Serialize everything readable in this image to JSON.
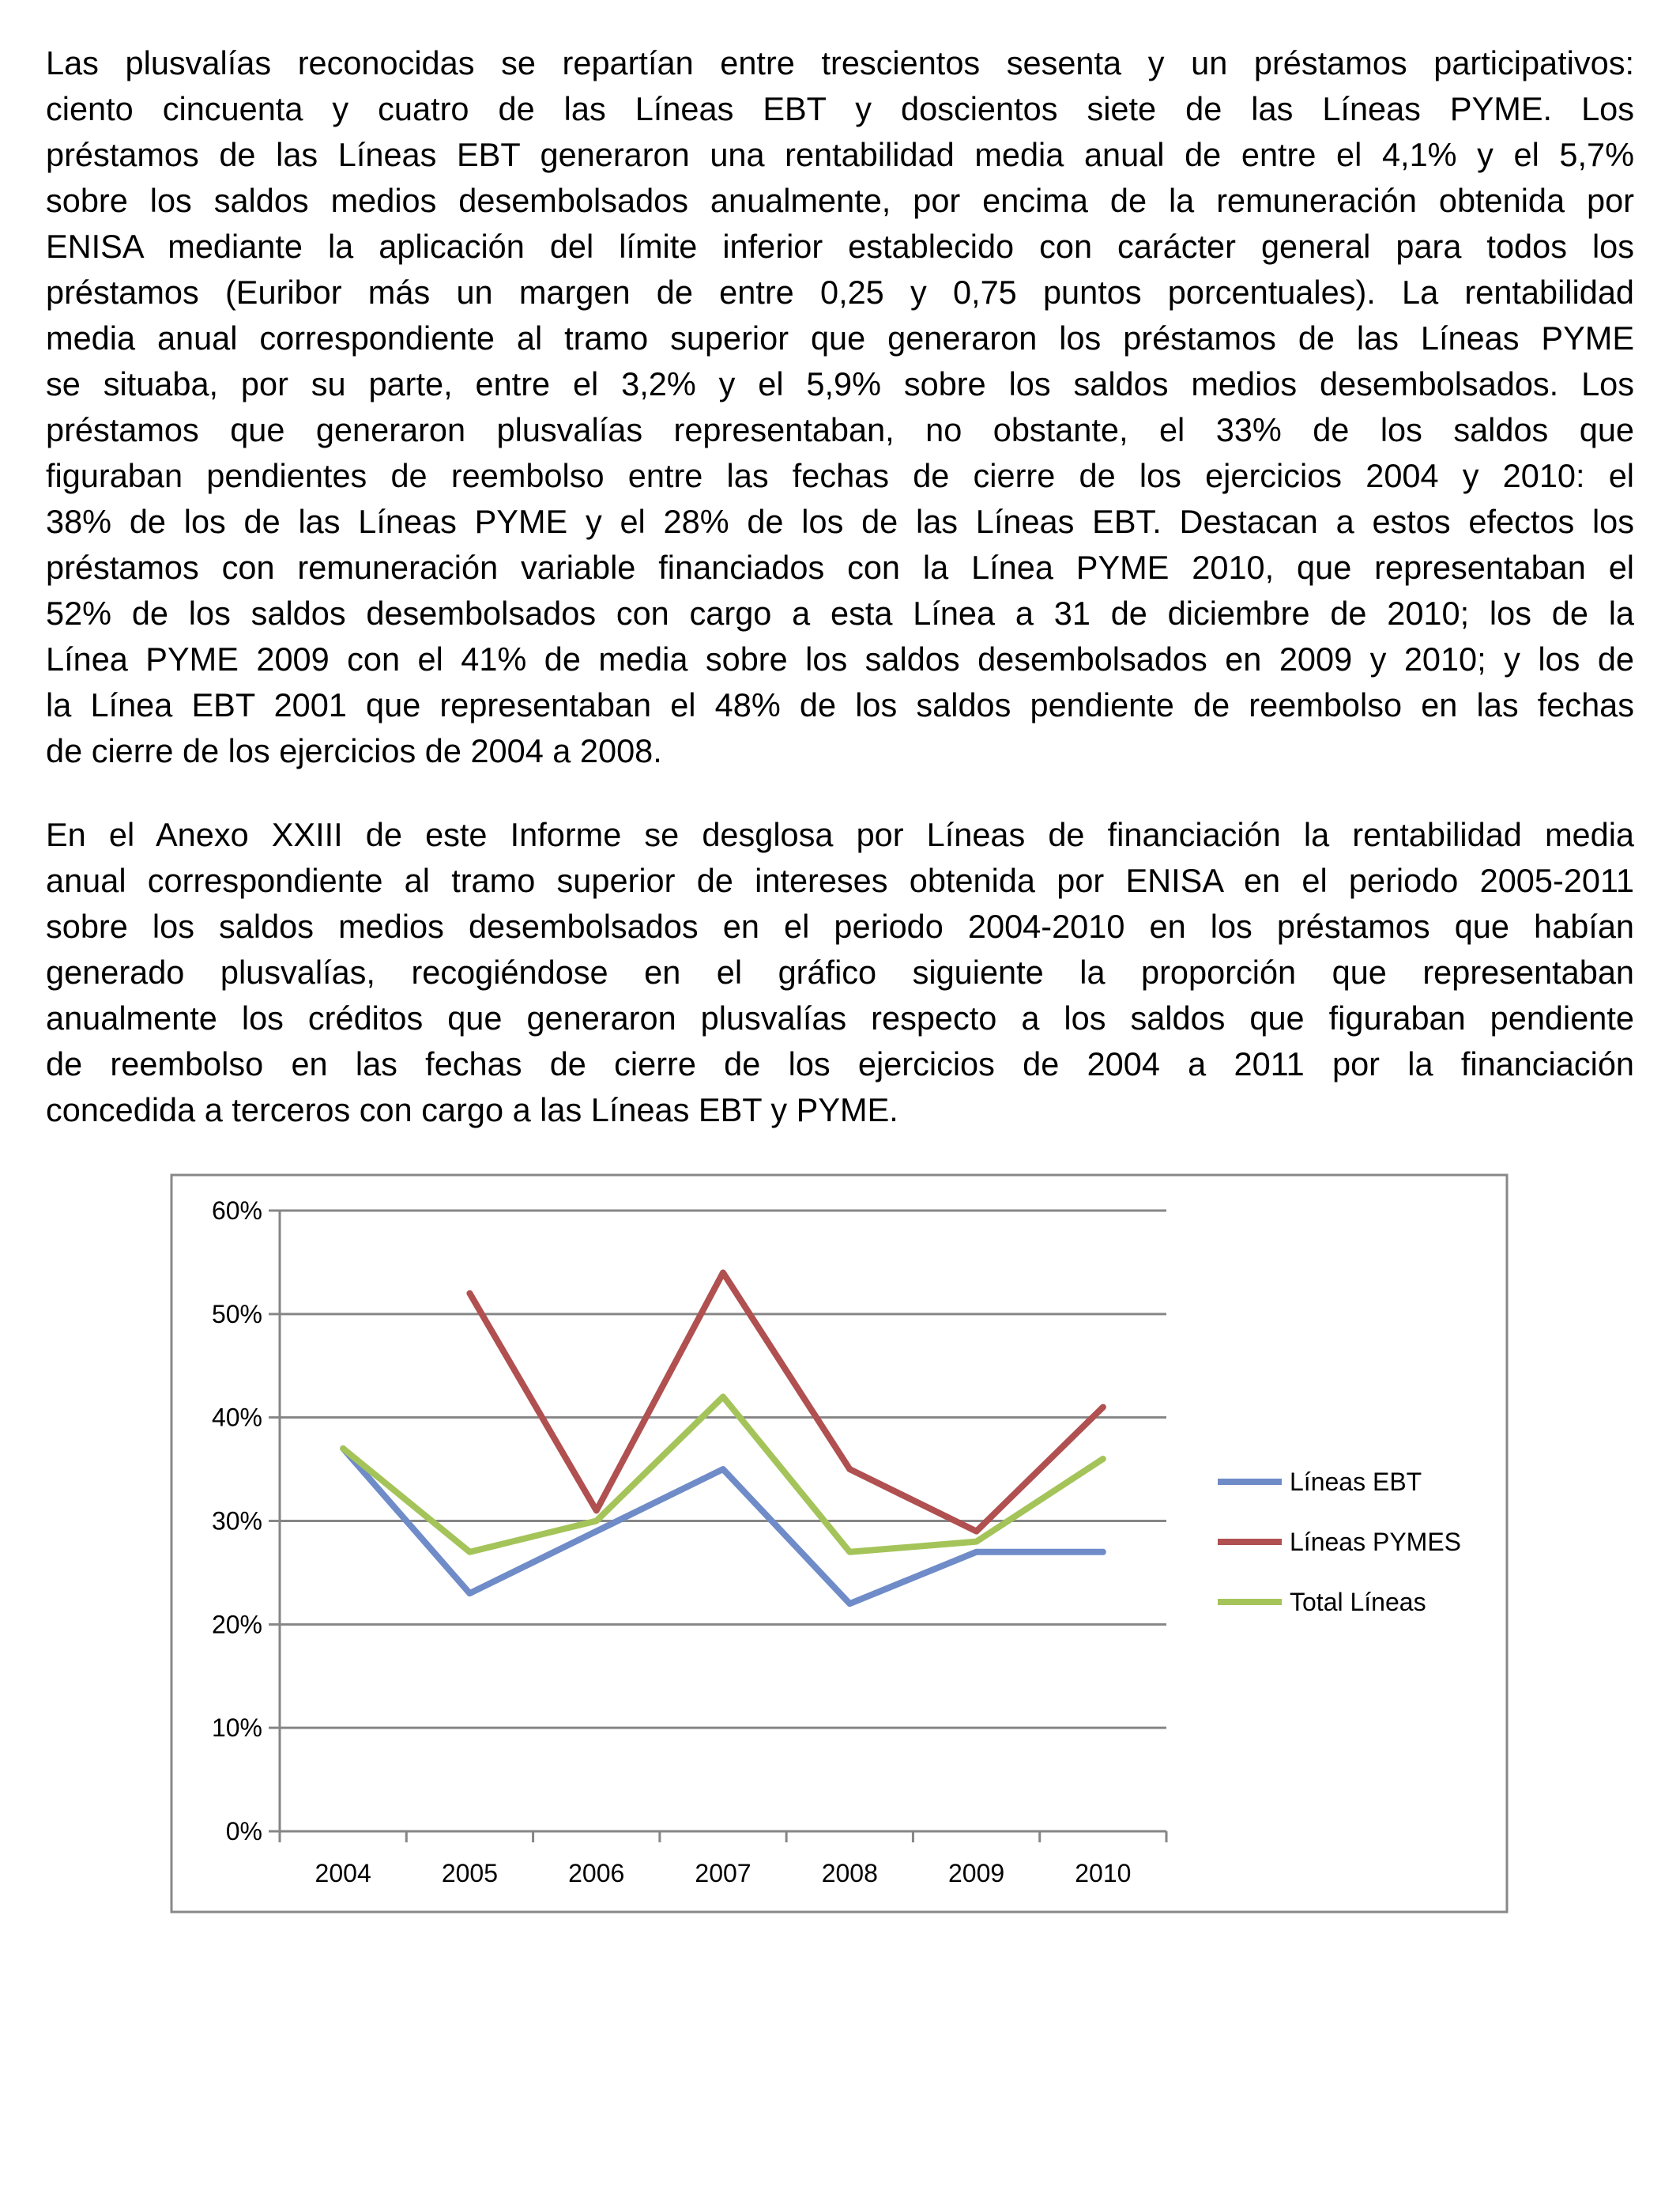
{
  "document": {
    "paragraphs": [
      [
        "Las plusvalías reconocidas se repartían entre trescientos sesenta y un préstamos participativos:",
        "ciento cincuenta y cuatro de las Líneas EBT y doscientos siete de las Líneas PYME. Los",
        "préstamos de las Líneas EBT generaron una rentabilidad media anual de entre el 4,1% y el 5,7%",
        "sobre los saldos medios desembolsados anualmente, por encima de la remuneración obtenida por",
        "ENISA mediante la aplicación del límite inferior establecido con carácter general para todos los",
        "préstamos (Euribor más un margen de entre 0,25 y 0,75 puntos porcentuales). La rentabilidad",
        "media anual correspondiente al tramo superior que generaron los préstamos de las Líneas PYME",
        "se situaba, por su parte, entre el 3,2% y el 5,9% sobre los saldos medios desembolsados. Los",
        "préstamos que generaron plusvalías representaban, no obstante, el 33% de los saldos que",
        "figuraban pendientes de reembolso entre las fechas de cierre de los ejercicios 2004 y 2010: el",
        "38% de los de las Líneas PYME y el 28% de los de las Líneas EBT. Destacan a estos efectos los",
        "préstamos con remuneración variable financiados con la Línea PYME 2010, que representaban el",
        "52% de los saldos desembolsados con cargo a esta Línea a 31 de diciembre de 2010; los de la",
        "Línea PYME 2009 con el 41% de media sobre los saldos desembolsados en 2009 y 2010; y los de",
        "la Línea EBT 2001 que representaban el 48% de los saldos pendiente de reembolso en las fechas",
        "de cierre de los ejercicios de 2004 a 2008."
      ],
      [
        "En el Anexo XXIII de este Informe se desglosa por Líneas de financiación la rentabilidad media",
        "anual correspondiente al tramo superior de intereses obtenida por ENISA en el periodo 2005-2011",
        "sobre los saldos medios desembolsados en el periodo 2004-2010 en los préstamos que habían",
        "generado plusvalías, recogiéndose en el gráfico siguiente la proporción que representaban",
        "anualmente los créditos que generaron plusvalías respecto a los saldos que figuraban pendiente",
        "de reembolso en las fechas de cierre de los ejercicios de 2004 a 2011 por la financiación",
        "concedida a terceros con cargo a las Líneas EBT y PYME."
      ]
    ]
  },
  "chart_data": {
    "type": "line",
    "categories": [
      "2004",
      "2005",
      "2006",
      "2007",
      "2008",
      "2009",
      "2010"
    ],
    "series": [
      {
        "name": "Líneas EBT",
        "color": "#6F8BC8",
        "values": [
          37,
          23,
          29,
          35,
          22,
          27,
          27
        ]
      },
      {
        "name": "Líneas PYMES",
        "color": "#B05050",
        "values": [
          null,
          52,
          31,
          54,
          35,
          29,
          41
        ]
      },
      {
        "name": "Total Líneas",
        "color": "#A4C45A",
        "values": [
          37,
          27,
          30,
          42,
          27,
          28,
          36
        ]
      }
    ],
    "ylim": [
      0,
      60
    ],
    "yticks": [
      0,
      10,
      20,
      30,
      40,
      50,
      60
    ],
    "ytick_labels": [
      "0%",
      "10%",
      "20%",
      "30%",
      "40%",
      "50%",
      "60%"
    ],
    "grid": true,
    "legend": "right"
  }
}
